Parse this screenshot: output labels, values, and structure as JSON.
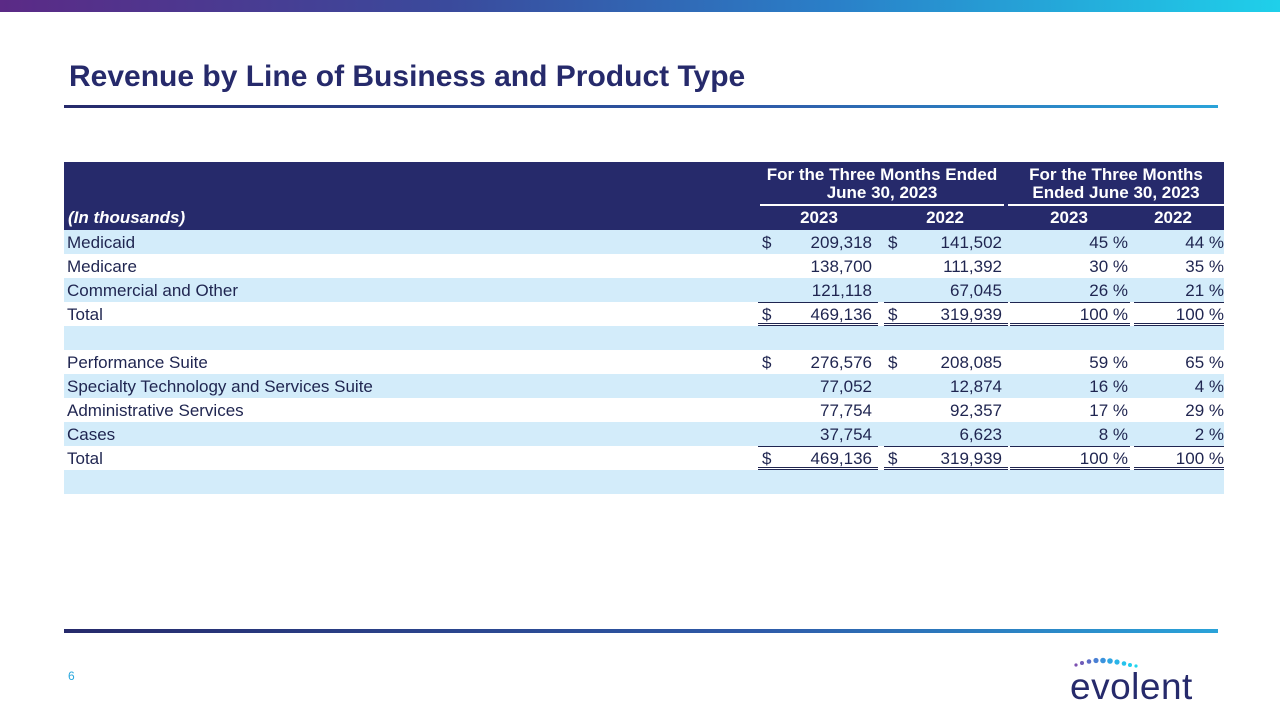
{
  "slide": {
    "title": "Revenue by Line of Business and Product Type",
    "page_number": "6",
    "logo_text": "evolent"
  },
  "table": {
    "unit_label": "(In thousands)",
    "group_header_1": "For the Three Months Ended June 30, 2023",
    "group_header_2": "For the Three Months Ended June 30, 2023",
    "years": [
      "2023",
      "2022",
      "2023",
      "2022"
    ],
    "currency_symbol": "$",
    "section1": [
      {
        "label": "Medicaid",
        "dollar": true,
        "v2023": "209,318",
        "v2022": "141,502",
        "p2023": "45 %",
        "p2022": "44 %"
      },
      {
        "label": "Medicare",
        "dollar": false,
        "v2023": "138,700",
        "v2022": "111,392",
        "p2023": "30 %",
        "p2022": "35 %"
      },
      {
        "label": "Commercial and Other",
        "dollar": false,
        "v2023": "121,118",
        "v2022": "67,045",
        "p2023": "26 %",
        "p2022": "21 %"
      },
      {
        "label": "Total",
        "dollar": true,
        "v2023": "469,136",
        "v2022": "319,939",
        "p2023": "100 %",
        "p2022": "100 %"
      }
    ],
    "section2": [
      {
        "label": "Performance Suite",
        "dollar": true,
        "v2023": "276,576",
        "v2022": "208,085",
        "p2023": "59 %",
        "p2022": "65 %"
      },
      {
        "label": "Specialty Technology and Services Suite",
        "dollar": false,
        "v2023": "77,052",
        "v2022": "12,874",
        "p2023": "16 %",
        "p2022": "4 %"
      },
      {
        "label": "Administrative Services",
        "dollar": false,
        "v2023": "77,754",
        "v2022": "92,357",
        "p2023": "17 %",
        "p2022": "29 %"
      },
      {
        "label": "Cases",
        "dollar": false,
        "v2023": "37,754",
        "v2022": "6,623",
        "p2023": "8 %",
        "p2022": "2 %"
      },
      {
        "label": "Total",
        "dollar": true,
        "v2023": "469,136",
        "v2022": "319,939",
        "p2023": "100 %",
        "p2022": "100 %"
      }
    ]
  },
  "colors": {
    "header_bg": "#262a6b",
    "alt_row_bg": "#d3ecfa",
    "title_color": "#262a6b",
    "accent_cyan": "#29a7dd"
  }
}
